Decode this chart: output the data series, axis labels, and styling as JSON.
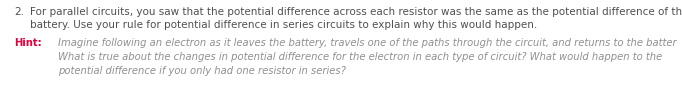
{
  "background_color": "#ffffff",
  "number_text": "2.",
  "main_line1": "For parallel circuits, you saw that the potential difference across each resistor was the same as the potential difference of the",
  "main_line2": "battery. Use your rule for potential difference in series circuits to explain why this would happen.",
  "hint_label": "Hint:",
  "hint_line1": "Imagine following an electron as it leaves the battery, travels one of the paths through the circuit, and returns to the batter",
  "hint_line2": "What is true about the changes in potential difference for the electron in each type of circuit? What would happen to the",
  "hint_line3": "potential difference if you only had one resistor in series?",
  "main_color": "#505050",
  "hint_label_color": "#e8003d",
  "hint_text_color": "#909090",
  "number_color": "#505050",
  "font_size_main": 7.5,
  "font_size_hint": 7.2,
  "fig_width": 6.82,
  "fig_height": 1.03,
  "dpi": 100
}
